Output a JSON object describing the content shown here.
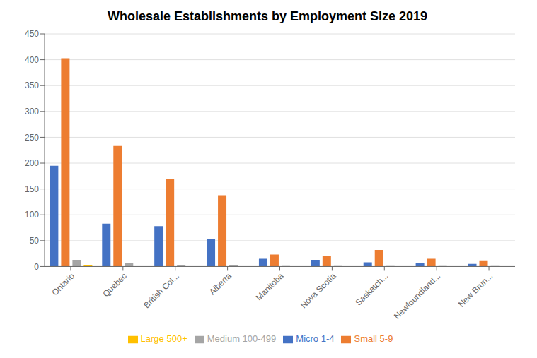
{
  "chart_data": {
    "type": "bar",
    "title": "Wholesale Establishments by Employment Size 2019",
    "categories": [
      "Ontario",
      "Quebec",
      "British Col...",
      "Alberta",
      "Manitoba",
      "Nova Scotia",
      "Saskatch...",
      "Newfoundland...",
      "New Brun..."
    ],
    "series": [
      {
        "name": "Micro 1-4",
        "color": "#4472c4",
        "values": [
          195,
          83,
          78,
          53,
          15,
          13,
          8,
          7,
          5
        ]
      },
      {
        "name": "Small 5-9",
        "color": "#ed7d31",
        "values": [
          403,
          233,
          169,
          138,
          23,
          21,
          32,
          15,
          12
        ]
      },
      {
        "name": "Medium 100-499",
        "color": "#a5a5a5",
        "values": [
          13,
          7,
          3,
          2,
          1,
          1,
          1,
          1,
          1
        ]
      },
      {
        "name": "Large 500+",
        "color": "#ffc000",
        "values": [
          2,
          0,
          0,
          0,
          0,
          0,
          0,
          0,
          0
        ]
      }
    ],
    "ylim": [
      0,
      450
    ],
    "yticks": [
      0,
      50,
      100,
      150,
      200,
      250,
      300,
      350,
      400,
      450
    ],
    "grid": true,
    "legend": "bottom"
  }
}
